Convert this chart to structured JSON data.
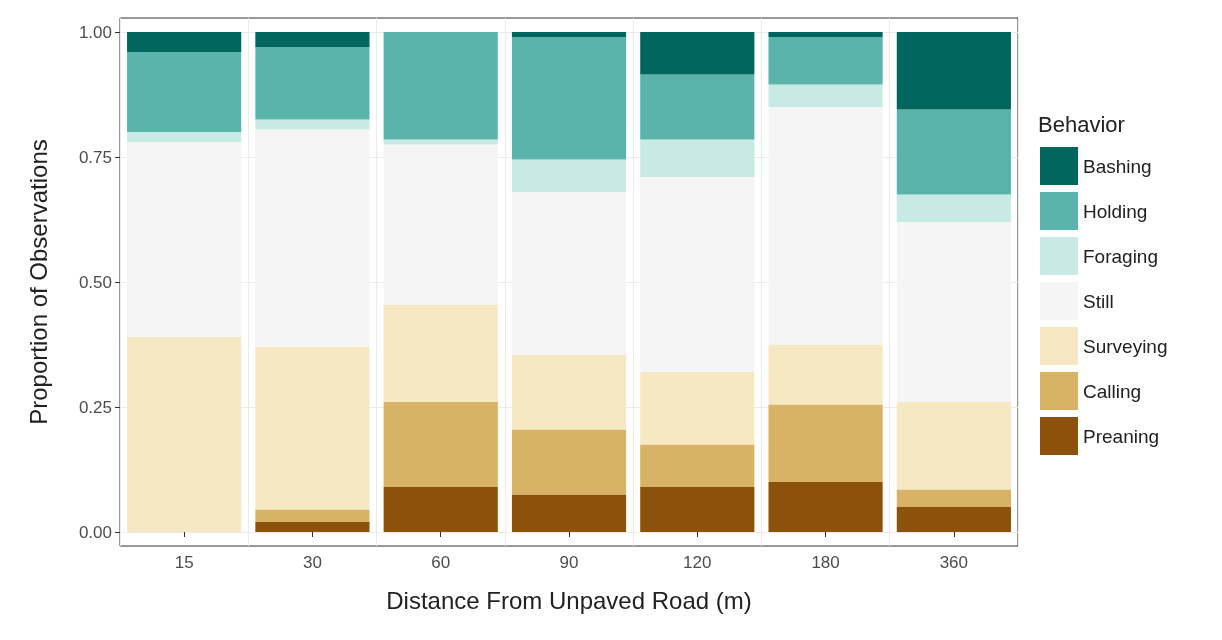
{
  "chart_data": {
    "type": "bar",
    "stacked": true,
    "xlabel": "Distance From Unpaved Road (m)",
    "ylabel": "Proportion of Observations",
    "legend_title": "Behavior",
    "legend": "right",
    "grid": true,
    "categories": [
      "15",
      "30",
      "60",
      "90",
      "120",
      "180",
      "360"
    ],
    "ylim": [
      -0.028,
      1.028
    ],
    "yticks": [
      {
        "value": 0,
        "label": "0.00"
      },
      {
        "value": 0.25,
        "label": "0.25"
      },
      {
        "value": 0.5,
        "label": "0.50"
      },
      {
        "value": 0.75,
        "label": "0.75"
      },
      {
        "value": 1,
        "label": "1.00"
      }
    ],
    "series": [
      {
        "name": "Preaning",
        "color": "#8c510a",
        "values": [
          0,
          0.02,
          0.09,
          0.075,
          0.09,
          0.1,
          0.05
        ]
      },
      {
        "name": "Calling",
        "color": "#d8b365",
        "values": [
          0,
          0.025,
          0.17,
          0.13,
          0.085,
          0.155,
          0.035
        ]
      },
      {
        "name": "Surveying",
        "color": "#f6e8c3",
        "values": [
          0.39,
          0.325,
          0.195,
          0.15,
          0.145,
          0.12,
          0.175
        ]
      },
      {
        "name": "Still",
        "color": "#f5f5f5",
        "values": [
          0.39,
          0.435,
          0.32,
          0.325,
          0.39,
          0.475,
          0.36
        ]
      },
      {
        "name": "Foraging",
        "color": "#c7eae5",
        "values": [
          0.02,
          0.02,
          0.01,
          0.065,
          0.075,
          0.045,
          0.055
        ]
      },
      {
        "name": "Holding",
        "color": "#5ab4ac",
        "values": [
          0.16,
          0.145,
          0.215,
          0.245,
          0.13,
          0.095,
          0.17
        ]
      },
      {
        "name": "Bashing",
        "color": "#01665e",
        "values": [
          0.04,
          0.03,
          0,
          0.01,
          0.085,
          0.01,
          0.155
        ]
      }
    ]
  }
}
